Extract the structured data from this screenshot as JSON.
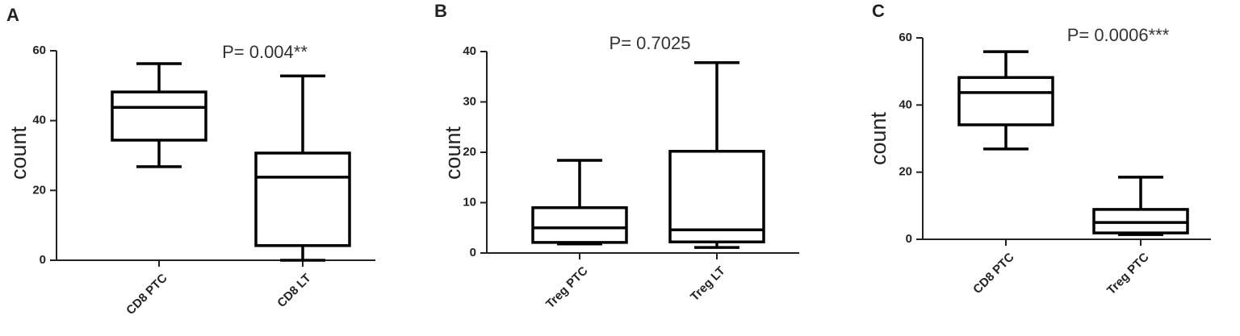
{
  "chart_data": [
    {
      "type": "box",
      "label": "A",
      "ylabel": "count",
      "annotation": "P= 0.004**",
      "categories": [
        "CD8 PTC",
        "CD8 LT"
      ],
      "low": [
        26.8,
        0
      ],
      "q1": [
        34.4,
        4.2
      ],
      "median": [
        43.8,
        23.8
      ],
      "q3": [
        48.2,
        30.7
      ],
      "high": [
        56.3,
        52.8
      ],
      "color": "#000000",
      "ylim": [
        0,
        60
      ],
      "yticks": [
        0,
        20,
        40,
        60
      ]
    },
    {
      "type": "box",
      "label": "B",
      "ylabel": "count",
      "annotation": "P= 0.7025",
      "categories": [
        "Treg PTC",
        "Treg LT"
      ],
      "low": [
        1.8,
        1.1
      ],
      "q1": [
        2.1,
        2.2
      ],
      "median": [
        5.0,
        4.6
      ],
      "q3": [
        9.0,
        20.2
      ],
      "high": [
        18.4,
        37.8
      ],
      "color": "#000000",
      "ylim": [
        0,
        40
      ],
      "yticks": [
        0,
        10,
        20,
        30,
        40
      ]
    },
    {
      "type": "box",
      "label": "C",
      "ylabel": "count",
      "annotation": "P= 0.0006***",
      "categories": [
        "CD8 PTC",
        "Treg PTC"
      ],
      "low": [
        26.9,
        1.4
      ],
      "q1": [
        34.1,
        1.9
      ],
      "median": [
        43.7,
        5.0
      ],
      "q3": [
        48.2,
        8.9
      ],
      "high": [
        55.9,
        18.5
      ],
      "color": "#000000",
      "ylim": [
        0,
        60
      ],
      "yticks": [
        0,
        20,
        40,
        60
      ]
    }
  ]
}
